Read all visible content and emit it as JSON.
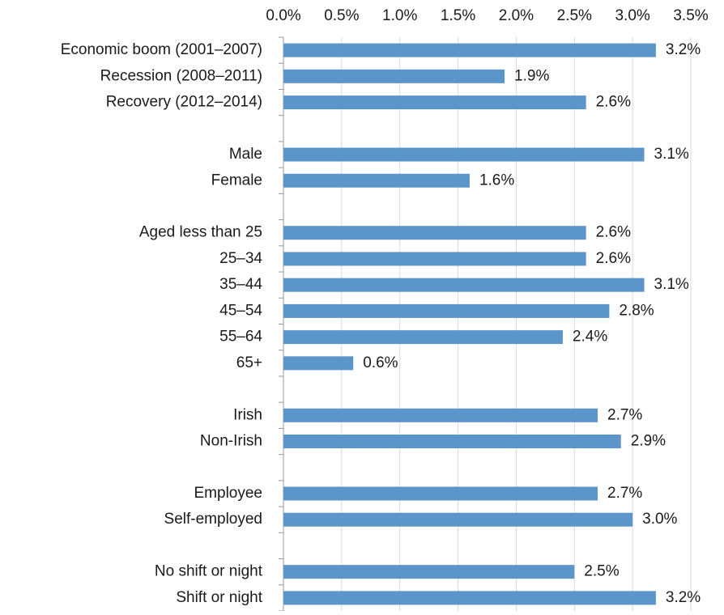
{
  "chart_data": {
    "type": "bar",
    "orientation": "horizontal",
    "categories": [
      "Economic boom (2001–2007)",
      "Recession (2008–2011)",
      "Recovery (2012–2014)",
      null,
      "Male",
      "Female",
      null,
      "Aged less than 25",
      "25–34",
      "35–44",
      "45–54",
      "55–64",
      "65+",
      null,
      "Irish",
      "Non-Irish",
      null,
      "Employee",
      "Self-employed",
      null,
      "No shift or night",
      "Shift or night"
    ],
    "values": [
      3.2,
      1.9,
      2.6,
      null,
      3.1,
      1.6,
      null,
      2.6,
      2.6,
      3.1,
      2.8,
      2.4,
      0.6,
      null,
      2.7,
      2.9,
      null,
      2.7,
      3.0,
      null,
      2.5,
      3.2
    ],
    "value_labels": [
      "3.2%",
      "1.9%",
      "2.6%",
      null,
      "3.1%",
      "1.6%",
      null,
      "2.6%",
      "2.6%",
      "3.1%",
      "2.8%",
      "2.4%",
      "0.6%",
      null,
      "2.7%",
      "2.9%",
      null,
      "2.7%",
      "3.0%",
      null,
      "2.5%",
      "3.2%"
    ],
    "color": "#5b95ca",
    "xlim": [
      0,
      3.5
    ],
    "xticks": [
      {
        "value": 0,
        "label": "0.0%"
      },
      {
        "value": 0.5,
        "label": "0.5%"
      },
      {
        "value": 1,
        "label": "1.0%"
      },
      {
        "value": 1.5,
        "label": "1.5%"
      },
      {
        "value": 2,
        "label": "2.0%"
      },
      {
        "value": 2.5,
        "label": "2.5%"
      },
      {
        "value": 3,
        "label": "3.0%"
      },
      {
        "value": 3.5,
        "label": "3.5%"
      }
    ],
    "grid": true
  }
}
